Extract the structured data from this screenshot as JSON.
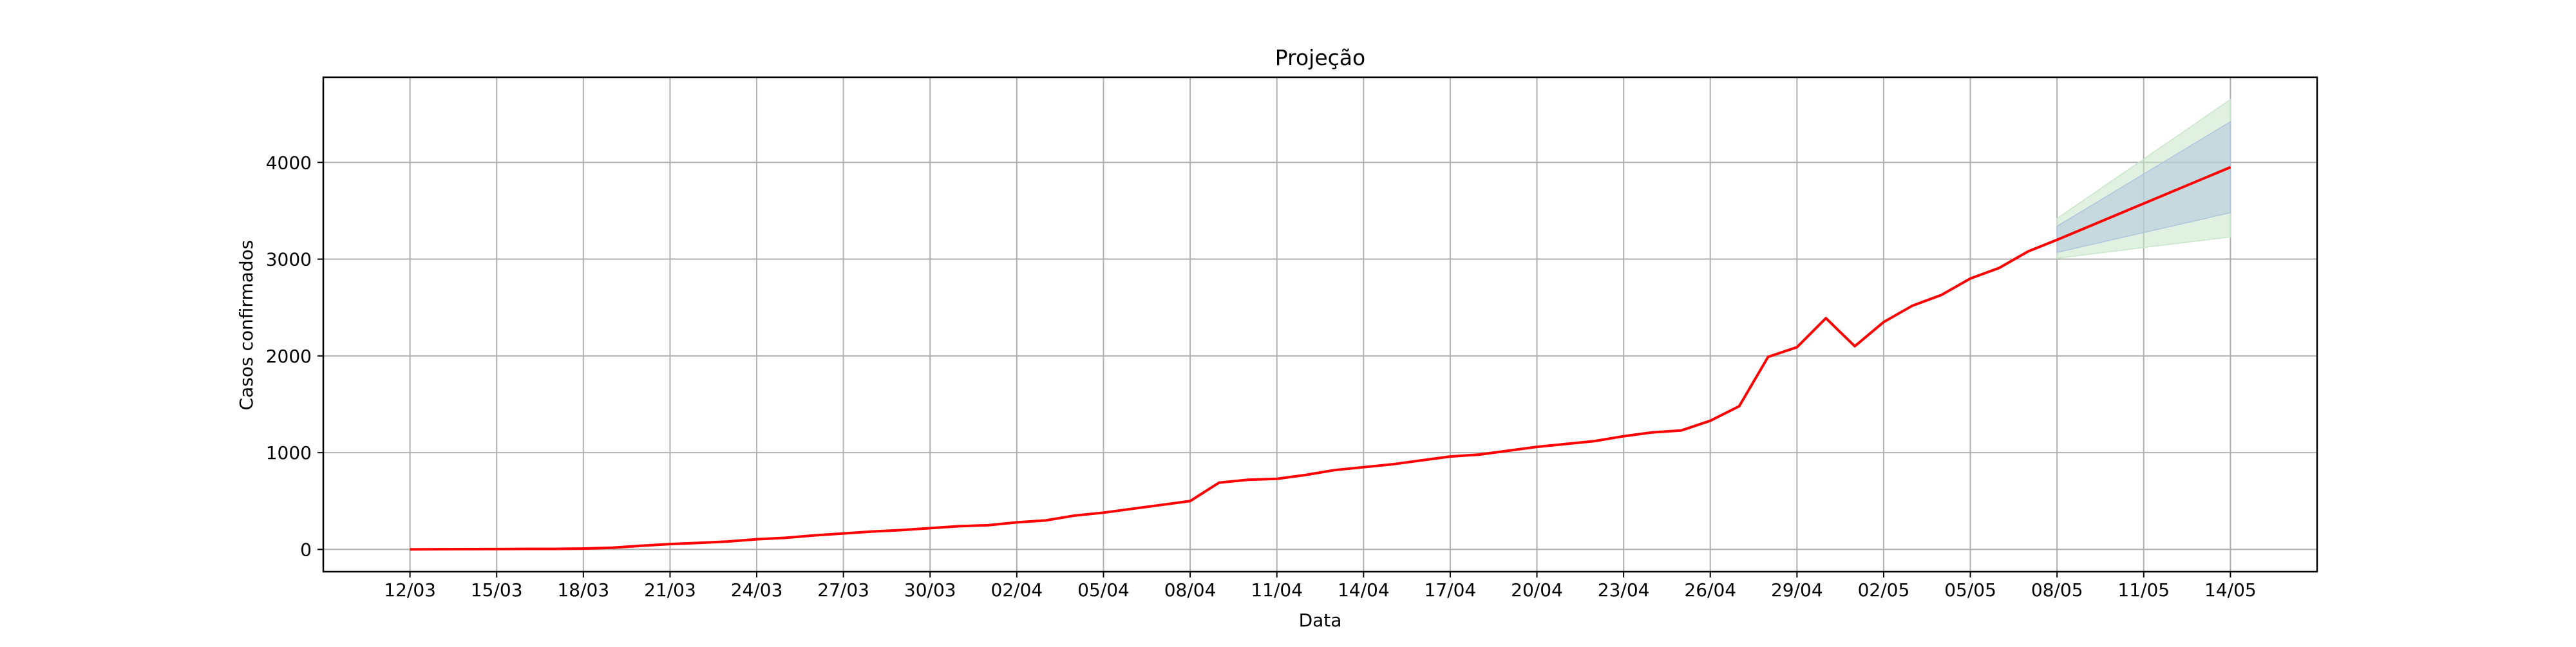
{
  "chart_data": {
    "type": "line",
    "title": "Projeção",
    "xlabel": "Data",
    "ylabel": "Casos confirmados",
    "x_tick_labels": [
      "12/03",
      "15/03",
      "18/03",
      "21/03",
      "24/03",
      "27/03",
      "30/03",
      "02/04",
      "05/04",
      "08/04",
      "11/04",
      "14/04",
      "17/04",
      "20/04",
      "23/04",
      "26/04",
      "29/04",
      "02/05",
      "05/05",
      "08/05",
      "11/05",
      "14/05"
    ],
    "y_ticks": [
      0,
      1000,
      2000,
      3000,
      4000
    ],
    "xlim": [
      "2020-03-09",
      "2020-05-17"
    ],
    "ylim": [
      -230,
      4880
    ],
    "grid": true,
    "colors": {
      "line": "#ff0000",
      "inner_band": "#b0c4de",
      "outer_band": "#c8e6c9",
      "grid": "#b0b0b0"
    },
    "series": [
      {
        "x": [
          "2020-03-12",
          "2020-03-13",
          "2020-03-14",
          "2020-03-15",
          "2020-03-16",
          "2020-03-17",
          "2020-03-18",
          "2020-03-19",
          "2020-03-20",
          "2020-03-21",
          "2020-03-22",
          "2020-03-23",
          "2020-03-24",
          "2020-03-25",
          "2020-03-26",
          "2020-03-27",
          "2020-03-28",
          "2020-03-29",
          "2020-03-30",
          "2020-03-31",
          "2020-04-01",
          "2020-04-02",
          "2020-04-03",
          "2020-04-04",
          "2020-04-05",
          "2020-04-06",
          "2020-04-07",
          "2020-04-08",
          "2020-04-09",
          "2020-04-10",
          "2020-04-11",
          "2020-04-12",
          "2020-04-13",
          "2020-04-14",
          "2020-04-15",
          "2020-04-16",
          "2020-04-17",
          "2020-04-18",
          "2020-04-19",
          "2020-04-20",
          "2020-04-21",
          "2020-04-22",
          "2020-04-23",
          "2020-04-24",
          "2020-04-25",
          "2020-04-26",
          "2020-04-27",
          "2020-04-28",
          "2020-04-29",
          "2020-04-30",
          "2020-05-01",
          "2020-05-02",
          "2020-05-03",
          "2020-05-04",
          "2020-05-05",
          "2020-05-06",
          "2020-05-07",
          "2020-05-08",
          "2020-05-14"
        ],
        "values": [
          0,
          2,
          3,
          4,
          5,
          5,
          9,
          18,
          38,
          55,
          68,
          82,
          105,
          120,
          145,
          165,
          185,
          200,
          220,
          240,
          250,
          280,
          300,
          350,
          380,
          420,
          460,
          500,
          690,
          720,
          730,
          770,
          820,
          850,
          880,
          920,
          960,
          980,
          1020,
          1060,
          1090,
          1120,
          1170,
          1210,
          1230,
          1330,
          1480,
          1990,
          2090,
          2390,
          2100,
          2350,
          2520,
          2630,
          2800,
          2910,
          3080,
          3200,
          3950
        ]
      }
    ],
    "projection_bands": [
      {
        "label": "inner",
        "x": [
          "2020-05-08",
          "2020-05-14"
        ],
        "upper": [
          3340,
          4420
        ],
        "lower": [
          3070,
          3480
        ]
      },
      {
        "label": "outer",
        "x": [
          "2020-05-08",
          "2020-05-14"
        ],
        "upper": [
          3420,
          4650
        ],
        "lower": [
          3010,
          3230
        ]
      }
    ]
  }
}
